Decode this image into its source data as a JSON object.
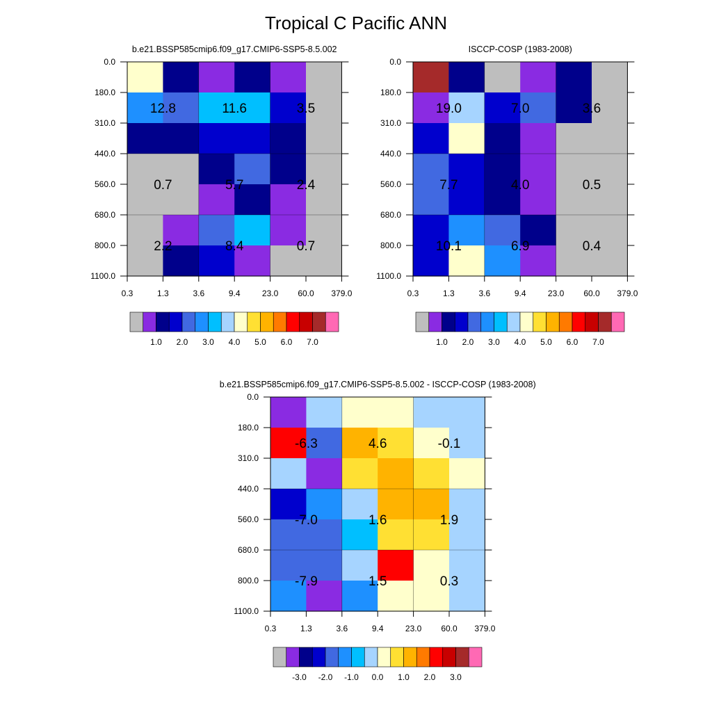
{
  "title": "Tropical C Pacific ANN",
  "palette": [
    "#bebebe",
    "#8a2be2",
    "#00008b",
    "#0000cd",
    "#4169e1",
    "#1e90ff",
    "#00bfff",
    "#a6d4ff",
    "#ffffcc",
    "#ffe033",
    "#ffb300",
    "#ff7a00",
    "#ff0000",
    "#c80000",
    "#a52a2a",
    "#ff69b4"
  ],
  "chart_data": [
    {
      "type": "heatmap",
      "title": "b.e21.BSSP585cmip6.f09_g17.CMIP6-SSP5-8.5.002",
      "x_tick_labels": [
        "0.3",
        "1.3",
        "3.6",
        "9.4",
        "23.0",
        "60.0",
        "379.0"
      ],
      "y_tick_labels": [
        "0.0",
        "180.0",
        "310.0",
        "440.0",
        "560.0",
        "680.0",
        "800.0",
        "1100.0"
      ],
      "grid_colors": [
        [
          "#ffffcc",
          "#00008b",
          "#8a2be2",
          "#00008b",
          "#8a2be2",
          "#bebebe"
        ],
        [
          "#1e90ff",
          "#4169e1",
          "#00bfff",
          "#00bfff",
          "#0000cd",
          "#bebebe"
        ],
        [
          "#00008b",
          "#00008b",
          "#0000cd",
          "#0000cd",
          "#00008b",
          "#bebebe"
        ],
        [
          "#bebebe",
          "#bebebe",
          "#00008b",
          "#4169e1",
          "#00008b",
          "#bebebe"
        ],
        [
          "#bebebe",
          "#bebebe",
          "#8a2be2",
          "#00008b",
          "#8a2be2",
          "#bebebe"
        ],
        [
          "#bebebe",
          "#8a2be2",
          "#4169e1",
          "#00bfff",
          "#8a2be2",
          "#bebebe"
        ],
        [
          "#bebebe",
          "#00008b",
          "#0000cd",
          "#8a2be2",
          "#bebebe",
          "#bebebe"
        ]
      ],
      "block_values": [
        [
          "12.8",
          "11.6",
          "3.5"
        ],
        [
          "0.7",
          "5.7",
          "2.4"
        ],
        [
          "2.2",
          "8.4",
          "0.7"
        ]
      ],
      "colorbar_labels": [
        "1.0",
        "2.0",
        "3.0",
        "4.0",
        "5.0",
        "6.0",
        "7.0"
      ]
    },
    {
      "type": "heatmap",
      "title": "ISCCP-COSP (1983-2008)",
      "x_tick_labels": [
        "0.3",
        "1.3",
        "3.6",
        "9.4",
        "23.0",
        "60.0",
        "379.0"
      ],
      "y_tick_labels": [
        "0.0",
        "180.0",
        "310.0",
        "440.0",
        "560.0",
        "680.0",
        "800.0",
        "1100.0"
      ],
      "grid_colors": [
        [
          "#a52a2a",
          "#00008b",
          "#bebebe",
          "#8a2be2",
          "#00008b",
          "#bebebe"
        ],
        [
          "#8a2be2",
          "#a6d4ff",
          "#0000cd",
          "#4169e1",
          "#00008b",
          "#bebebe"
        ],
        [
          "#0000cd",
          "#ffffcc",
          "#00008b",
          "#8a2be2",
          "#bebebe",
          "#bebebe"
        ],
        [
          "#4169e1",
          "#0000cd",
          "#00008b",
          "#8a2be2",
          "#bebebe",
          "#bebebe"
        ],
        [
          "#4169e1",
          "#0000cd",
          "#00008b",
          "#8a2be2",
          "#bebebe",
          "#bebebe"
        ],
        [
          "#0000cd",
          "#1e90ff",
          "#4169e1",
          "#00008b",
          "#bebebe",
          "#bebebe"
        ],
        [
          "#0000cd",
          "#ffffcc",
          "#1e90ff",
          "#8a2be2",
          "#bebebe",
          "#bebebe"
        ]
      ],
      "block_values": [
        [
          "19.0",
          "7.0",
          "3.6"
        ],
        [
          "7.7",
          "4.0",
          "0.5"
        ],
        [
          "10.1",
          "6.9",
          "0.4"
        ]
      ],
      "colorbar_labels": [
        "1.0",
        "2.0",
        "3.0",
        "4.0",
        "5.0",
        "6.0",
        "7.0"
      ]
    },
    {
      "type": "heatmap",
      "title": "b.e21.BSSP585cmip6.f09_g17.CMIP6-SSP5-8.5.002 - ISCCP-COSP (1983-2008)",
      "x_tick_labels": [
        "0.3",
        "1.3",
        "3.6",
        "9.4",
        "23.0",
        "60.0",
        "379.0"
      ],
      "y_tick_labels": [
        "0.0",
        "180.0",
        "310.0",
        "440.0",
        "560.0",
        "680.0",
        "800.0",
        "1100.0"
      ],
      "grid_colors": [
        [
          "#8a2be2",
          "#a6d4ff",
          "#ffffcc",
          "#ffffcc",
          "#a6d4ff",
          "#a6d4ff"
        ],
        [
          "#ff0000",
          "#4169e1",
          "#ffb300",
          "#ffe033",
          "#ffffcc",
          "#a6d4ff"
        ],
        [
          "#a6d4ff",
          "#8a2be2",
          "#ffe033",
          "#ffb300",
          "#ffe033",
          "#ffffcc"
        ],
        [
          "#0000cd",
          "#1e90ff",
          "#a6d4ff",
          "#ffb300",
          "#ffb300",
          "#a6d4ff"
        ],
        [
          "#4169e1",
          "#4169e1",
          "#00bfff",
          "#ffe033",
          "#ffe033",
          "#a6d4ff"
        ],
        [
          "#4169e1",
          "#4169e1",
          "#a6d4ff",
          "#ff0000",
          "#ffffcc",
          "#a6d4ff"
        ],
        [
          "#1e90ff",
          "#8a2be2",
          "#1e90ff",
          "#ffffcc",
          "#ffffcc",
          "#a6d4ff"
        ]
      ],
      "block_values": [
        [
          "-6.3",
          "4.6",
          "-0.1"
        ],
        [
          "-7.0",
          "1.6",
          "1.9"
        ],
        [
          "-7.9",
          "1.5",
          "0.3"
        ]
      ],
      "colorbar_labels": [
        "-3.0",
        "-2.0",
        "-1.0",
        "0.0",
        "1.0",
        "2.0",
        "3.0"
      ]
    }
  ]
}
